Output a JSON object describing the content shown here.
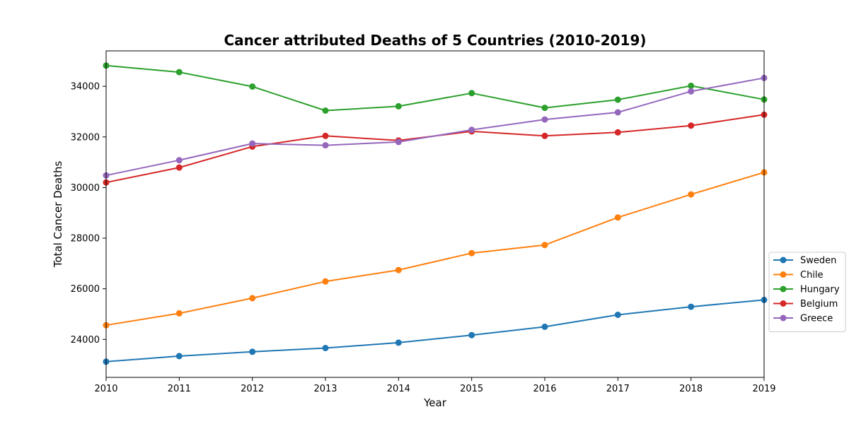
{
  "chart_data": {
    "type": "line",
    "title": "Cancer attributed Deaths of 5 Countries (2010-2019)",
    "xlabel": "Year",
    "ylabel": "Total Cancer Deaths",
    "x": [
      2010,
      2011,
      2012,
      2013,
      2014,
      2015,
      2016,
      2017,
      2018,
      2019
    ],
    "xlim": [
      2010,
      2019
    ],
    "ylim": [
      22500,
      35400
    ],
    "yticks": [
      24000,
      26000,
      28000,
      30000,
      32000,
      34000
    ],
    "grid": false,
    "legend_position": "right",
    "series": [
      {
        "name": "Sweden",
        "color": "#1f77b4",
        "values": [
          23120,
          23340,
          23510,
          23660,
          23870,
          24170,
          24500,
          24970,
          25290,
          25560
        ]
      },
      {
        "name": "Chile",
        "color": "#ff7f0e",
        "values": [
          24560,
          25030,
          25630,
          26290,
          26740,
          27410,
          27730,
          28820,
          29730,
          30600
        ]
      },
      {
        "name": "Hungary",
        "color": "#2ca02c",
        "values": [
          34820,
          34560,
          33990,
          33040,
          33210,
          33730,
          33150,
          33470,
          34020,
          33480
        ]
      },
      {
        "name": "Belgium",
        "color": "#d62728",
        "values": [
          30200,
          30790,
          31620,
          32040,
          31860,
          32220,
          32040,
          32180,
          32450,
          32880
        ]
      },
      {
        "name": "Greece",
        "color": "#9467bd",
        "values": [
          30480,
          31080,
          31740,
          31670,
          31800,
          32280,
          32690,
          32970,
          33800,
          34330
        ]
      }
    ]
  }
}
